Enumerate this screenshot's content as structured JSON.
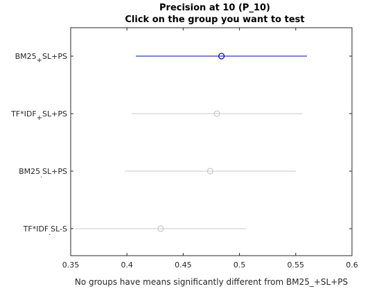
{
  "chart_data": {
    "type": "scatter",
    "title": "Precision at 10 (P_10)",
    "subtitle": "Click on the group you want to test",
    "xlabel": "No groups have means significantly different from BM25_+SL+PS",
    "xlim": [
      0.35,
      0.6
    ],
    "xticks": [
      "0.35",
      "0.4",
      "0.45",
      "0.5",
      "0.55",
      "0.6"
    ],
    "grid": false,
    "groups": [
      {
        "label": "BM25_+SL+PS",
        "mean": 0.484,
        "lower": 0.408,
        "upper": 0.56,
        "selected": true
      },
      {
        "label": "TF*IDF_+SL+PS",
        "mean": 0.48,
        "lower": 0.404,
        "upper": 0.556,
        "selected": false
      },
      {
        "label": "BM25_SL+PS",
        "mean": 0.474,
        "lower": 0.398,
        "upper": 0.55,
        "selected": false
      },
      {
        "label": "TF*IDF_SL-S",
        "mean": 0.43,
        "lower": 0.354,
        "upper": 0.506,
        "selected": false
      }
    ],
    "colors": {
      "selected": "#0000b3",
      "unselected": "#c8c8c8",
      "axis": "#262626"
    }
  }
}
